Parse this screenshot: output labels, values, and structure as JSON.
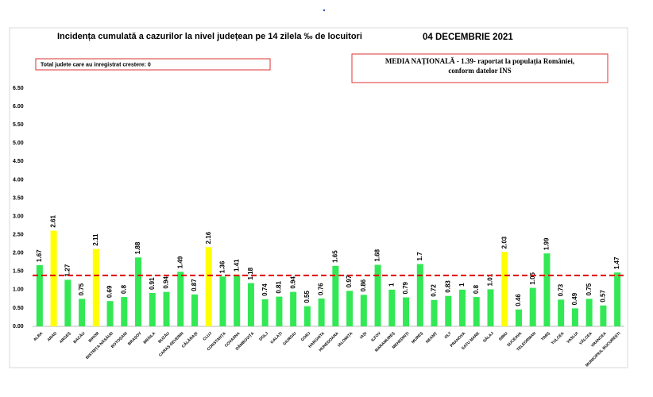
{
  "chart_data": {
    "type": "bar",
    "title": "Incidența cumulată a cazurilor la nivel județean pe 14 zilela ‰ de locuitori",
    "date": "04 DECEMBRIE 2021",
    "note": "Total judete care au inregistrat crestere: 0",
    "average_note": [
      "MEDIA NAȚIONALĂ  - 1.39-  raportat la populația României,",
      "conform datelor INS"
    ],
    "national_average": 1.39,
    "average_color": "#e00000",
    "categories": [
      "ALBA",
      "ARAD",
      "ARGEȘ",
      "BACĂU",
      "BIHOR",
      "BISTRIȚA-NĂSĂUD",
      "BOTOȘANI",
      "BRAȘOV",
      "BRĂILA",
      "BUZĂU",
      "CARAȘ-SEVERIN",
      "CĂLĂRAȘI",
      "CLUJ",
      "CONSTANȚA",
      "COVASNA",
      "DÂMBOVIȚA",
      "DOLJ",
      "GALAȚI",
      "GIURGIU",
      "GORJ",
      "HARGHITA",
      "HUNEDOARA",
      "IALOMIȚA",
      "IAȘI",
      "ILFOV",
      "MARAMUREȘ",
      "MEHEDINȚI",
      "MUREȘ",
      "NEAMȚ",
      "OLT",
      "PRAHOVA",
      "SATU MARE",
      "SĂLAJ",
      "SIBIU",
      "SUCEAVA",
      "TELEORMAN",
      "TIMIȘ",
      "TULCEA",
      "VASLUI",
      "VÂLCEA",
      "VRANCEA",
      "MUNICIPIUL BUCUREȘTI"
    ],
    "values": [
      1.67,
      2.61,
      1.27,
      0.75,
      2.11,
      0.69,
      0.8,
      1.88,
      0.91,
      0.94,
      1.49,
      0.87,
      2.16,
      1.36,
      1.41,
      1.18,
      0.74,
      0.81,
      0.94,
      0.55,
      0.76,
      1.65,
      0.97,
      0.86,
      1.68,
      1,
      0.79,
      1.7,
      0.72,
      0.83,
      1,
      0.8,
      1.01,
      2.03,
      0.46,
      1.05,
      1.99,
      0.73,
      0.49,
      0.75,
      0.57,
      1.47
    ],
    "colors": [
      "#33e855",
      "#ffff00",
      "#33e855",
      "#33e855",
      "#ffff00",
      "#33e855",
      "#33e855",
      "#33e855",
      "#33e855",
      "#33e855",
      "#33e855",
      "#33e855",
      "#ffff00",
      "#33e855",
      "#33e855",
      "#33e855",
      "#33e855",
      "#33e855",
      "#33e855",
      "#33e855",
      "#33e855",
      "#33e855",
      "#33e855",
      "#33e855",
      "#33e855",
      "#33e855",
      "#33e855",
      "#33e855",
      "#33e855",
      "#33e855",
      "#33e855",
      "#33e855",
      "#33e855",
      "#ffff00",
      "#33e855",
      "#33e855",
      "#33e855",
      "#33e855",
      "#33e855",
      "#33e855",
      "#33e855",
      "#33e855"
    ],
    "ylim": [
      0,
      6.74
    ],
    "yticks": [
      {
        "value": 0,
        "label": "0.00"
      },
      {
        "value": 0.5,
        "label": "0.50"
      },
      {
        "value": 1,
        "label": "1.00"
      },
      {
        "value": 1.5,
        "label": "1.50"
      },
      {
        "value": 2,
        "label": "2.00"
      },
      {
        "value": 2.5,
        "label": "2.50"
      },
      {
        "value": 3,
        "label": "3.00"
      },
      {
        "value": 3.5,
        "label": "3.50"
      },
      {
        "value": 4,
        "label": "4.00"
      },
      {
        "value": 4.5,
        "label": "4.50"
      },
      {
        "value": 5,
        "label": "5.00"
      },
      {
        "value": 5.5,
        "label": "5.50"
      },
      {
        "value": 6,
        "label": "6.00"
      },
      {
        "value": 6.5,
        "label": "6.50"
      }
    ],
    "grid": false
  }
}
